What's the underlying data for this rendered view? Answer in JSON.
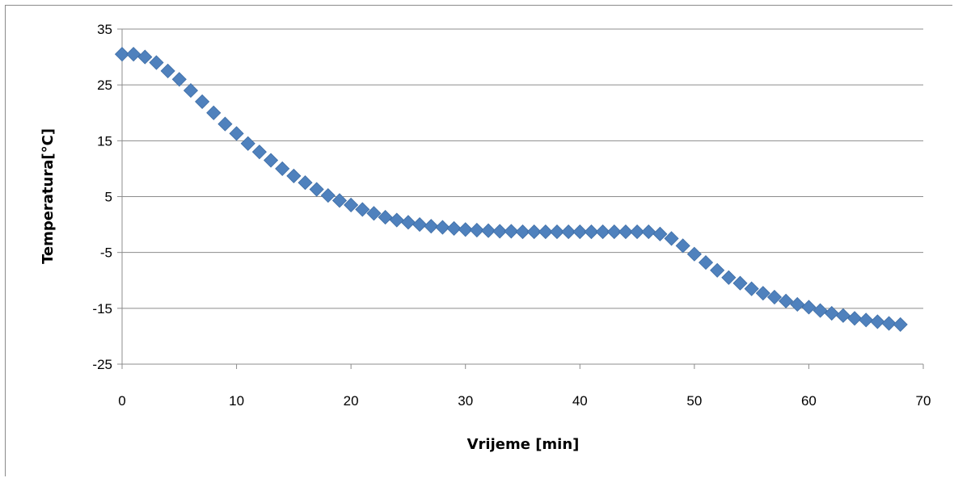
{
  "chart_data": {
    "type": "scatter",
    "title": "",
    "xlabel": "Vrijeme [min]",
    "ylabel": "Temperatura[°C]",
    "xlim": [
      0,
      70
    ],
    "ylim": [
      -25,
      35
    ],
    "x_ticks": [
      0,
      10,
      20,
      30,
      40,
      50,
      60,
      70
    ],
    "y_ticks": [
      -25,
      -15,
      -5,
      5,
      15,
      25,
      35
    ],
    "grid": {
      "horizontal": true,
      "vertical": false
    },
    "legend": "none",
    "marker": "diamond",
    "color": "#4f81bd",
    "series": [
      {
        "x": [
          0,
          1,
          2,
          3,
          4,
          5,
          6,
          7,
          8,
          9,
          10,
          11,
          12,
          13,
          14,
          15,
          16,
          17,
          18,
          19,
          20,
          21,
          22,
          23,
          24,
          25,
          26,
          27,
          28,
          29,
          30,
          31,
          32,
          33,
          34,
          35,
          36,
          37,
          38,
          39,
          40,
          41,
          42,
          43,
          44,
          45,
          46,
          47,
          48,
          49,
          50,
          51,
          52,
          53,
          54,
          55,
          56,
          57,
          58,
          59,
          60,
          61,
          62,
          63,
          64,
          65,
          66,
          67,
          68
        ],
        "y": [
          30.5,
          30.5,
          30,
          29,
          27.5,
          26,
          24,
          22,
          20,
          18,
          16.3,
          14.5,
          13,
          11.5,
          10,
          8.7,
          7.5,
          6.3,
          5.2,
          4.3,
          3.5,
          2.7,
          2,
          1.3,
          0.8,
          0.4,
          0,
          -0.3,
          -0.5,
          -0.7,
          -0.9,
          -1,
          -1.1,
          -1.2,
          -1.2,
          -1.3,
          -1.3,
          -1.3,
          -1.3,
          -1.3,
          -1.3,
          -1.3,
          -1.3,
          -1.3,
          -1.3,
          -1.3,
          -1.3,
          -1.7,
          -2.5,
          -3.8,
          -5.3,
          -6.8,
          -8.2,
          -9.5,
          -10.5,
          -11.5,
          -12.3,
          -13,
          -13.7,
          -14.3,
          -14.8,
          -15.4,
          -15.9,
          -16.3,
          -16.8,
          -17.1,
          -17.4,
          -17.7,
          -17.9
        ]
      }
    ]
  }
}
